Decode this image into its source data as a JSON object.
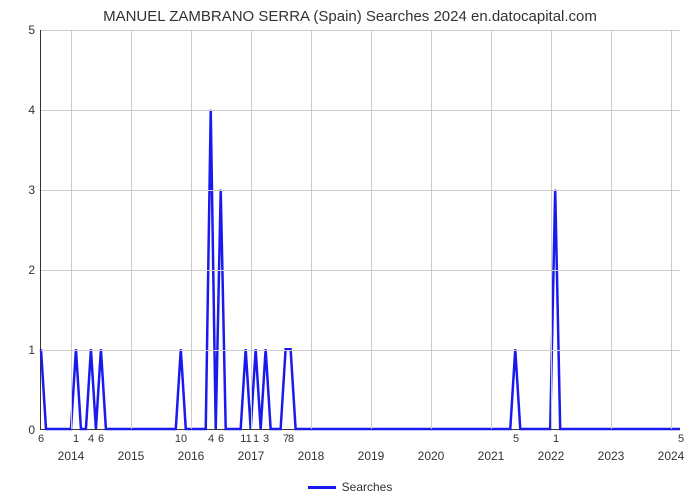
{
  "chart": {
    "type": "line",
    "title": "MANUEL ZAMBRANO SERRA (Spain) Searches 2024 en.datocapital.com",
    "title_fontsize": 15,
    "background_color": "#ffffff",
    "grid_color": "#cccccc",
    "axis_color": "#333333",
    "line_color": "#1a1aee",
    "line_width": 2.5,
    "ylabel": "",
    "ylim": [
      0,
      5
    ],
    "ytick_step": 1,
    "ytick_labels": [
      "0",
      "1",
      "2",
      "3",
      "4",
      "5"
    ],
    "ytick_fontsize": 12,
    "x_index_max": 128,
    "year_ticks": [
      {
        "label": "2014",
        "index": 6
      },
      {
        "label": "2015",
        "index": 18
      },
      {
        "label": "2016",
        "index": 30
      },
      {
        "label": "2017",
        "index": 42
      },
      {
        "label": "2018",
        "index": 54
      },
      {
        "label": "2019",
        "index": 66
      },
      {
        "label": "2020",
        "index": 78
      },
      {
        "label": "2021",
        "index": 90
      },
      {
        "label": "2022",
        "index": 102
      },
      {
        "label": "2023",
        "index": 114
      },
      {
        "label": "2024",
        "index": 126
      }
    ],
    "minor_xtick_labels": [
      {
        "label": "6",
        "index": 0
      },
      {
        "label": "1",
        "index": 7
      },
      {
        "label": "4",
        "index": 10
      },
      {
        "label": "6",
        "index": 12
      },
      {
        "label": "10",
        "index": 28
      },
      {
        "label": "4",
        "index": 34
      },
      {
        "label": "6",
        "index": 36
      },
      {
        "label": "11",
        "index": 41
      },
      {
        "label": "1",
        "index": 43
      },
      {
        "label": "3",
        "index": 45
      },
      {
        "label": "7",
        "index": 49
      },
      {
        "label": "8",
        "index": 50
      },
      {
        "label": "5",
        "index": 95
      },
      {
        "label": "1",
        "index": 103
      },
      {
        "label": "5",
        "index": 128
      }
    ],
    "series": {
      "name": "Searches",
      "label": "Searches",
      "color": "#1a1aee",
      "data": [
        {
          "x": 0,
          "y": 1
        },
        {
          "x": 1,
          "y": 0
        },
        {
          "x": 6,
          "y": 0
        },
        {
          "x": 7,
          "y": 1
        },
        {
          "x": 8,
          "y": 0
        },
        {
          "x": 9,
          "y": 0
        },
        {
          "x": 10,
          "y": 1
        },
        {
          "x": 11,
          "y": 0
        },
        {
          "x": 12,
          "y": 1
        },
        {
          "x": 13,
          "y": 0
        },
        {
          "x": 27,
          "y": 0
        },
        {
          "x": 28,
          "y": 1
        },
        {
          "x": 29,
          "y": 0
        },
        {
          "x": 33,
          "y": 0
        },
        {
          "x": 34,
          "y": 4
        },
        {
          "x": 35,
          "y": 0
        },
        {
          "x": 36,
          "y": 3
        },
        {
          "x": 37,
          "y": 0
        },
        {
          "x": 40,
          "y": 0
        },
        {
          "x": 41,
          "y": 1
        },
        {
          "x": 42,
          "y": 0
        },
        {
          "x": 43,
          "y": 1
        },
        {
          "x": 44,
          "y": 0
        },
        {
          "x": 45,
          "y": 1
        },
        {
          "x": 46,
          "y": 0
        },
        {
          "x": 48,
          "y": 0
        },
        {
          "x": 49,
          "y": 1
        },
        {
          "x": 50,
          "y": 1
        },
        {
          "x": 51,
          "y": 0
        },
        {
          "x": 94,
          "y": 0
        },
        {
          "x": 95,
          "y": 1
        },
        {
          "x": 96,
          "y": 0
        },
        {
          "x": 102,
          "y": 0
        },
        {
          "x": 103,
          "y": 3
        },
        {
          "x": 104,
          "y": 0
        },
        {
          "x": 128,
          "y": 0
        }
      ]
    },
    "legend_label": "Searches"
  }
}
